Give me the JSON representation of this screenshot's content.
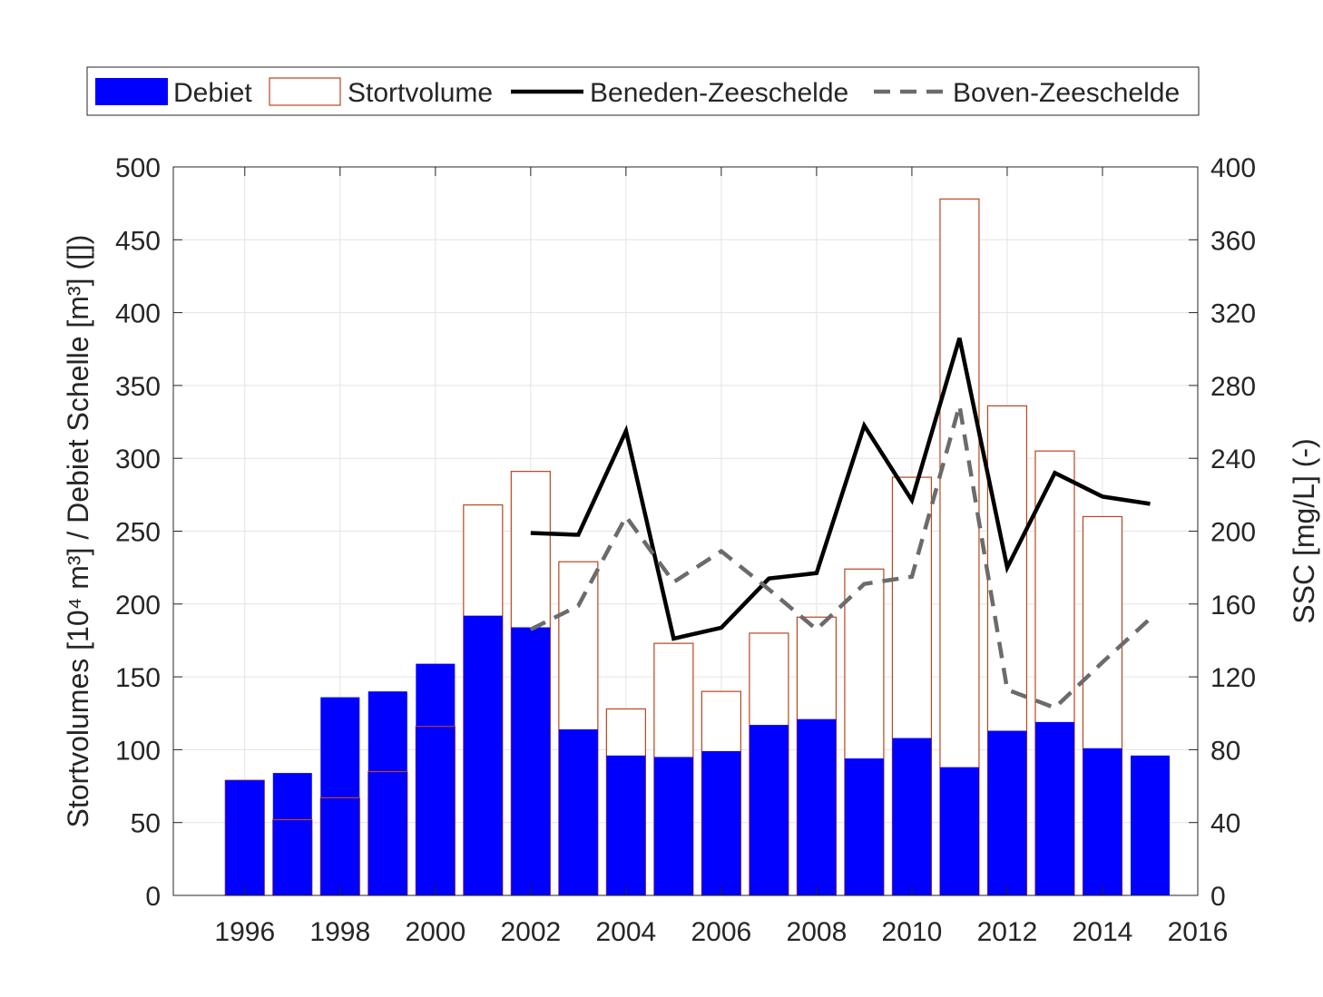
{
  "chart_data": {
    "type": "bar",
    "x": [
      1996,
      1997,
      1998,
      1999,
      2000,
      2001,
      2002,
      2003,
      2004,
      2005,
      2006,
      2007,
      2008,
      2009,
      2010,
      2011,
      2012,
      2013,
      2014,
      2015
    ],
    "xlim": [
      1994.5,
      2016
    ],
    "x_ticks": [
      1996,
      1998,
      2000,
      2002,
      2004,
      2006,
      2008,
      2010,
      2012,
      2014,
      2016
    ],
    "ylim_left": [
      0,
      500
    ],
    "y_ticks_left": [
      0,
      50,
      100,
      150,
      200,
      250,
      300,
      350,
      400,
      450,
      500
    ],
    "ylim_right": [
      0,
      400
    ],
    "y_ticks_right": [
      0,
      40,
      80,
      120,
      160,
      200,
      240,
      280,
      320,
      360,
      400
    ],
    "ylabel_left": "Stortvolumes [10⁴ m³] / Debiet Schelle [m³] ([])",
    "ylabel_right": "SSC [mg/L] (-)",
    "grid": true,
    "legend_position": "top",
    "series": [
      {
        "name": "Debiet",
        "kind": "bar-filled",
        "axis": "left",
        "color": "#0000ff",
        "values": [
          79,
          84,
          136,
          140,
          159,
          192,
          184,
          114,
          96,
          95,
          99,
          117,
          121,
          94,
          108,
          88,
          113,
          119,
          101,
          96
        ]
      },
      {
        "name": "Stortvolume",
        "kind": "bar-outline",
        "axis": "left",
        "color": "#b8461e",
        "values": [
          79,
          52,
          67,
          85,
          116,
          268,
          291,
          229,
          128,
          173,
          140,
          180,
          191,
          224,
          287,
          478,
          336,
          305,
          260,
          null
        ]
      },
      {
        "name": "Beneden-Zeeschelde",
        "kind": "line-solid",
        "axis": "right",
        "color": "#000000",
        "x": [
          2002,
          2003,
          2004,
          2005,
          2006,
          2007,
          2008,
          2009,
          2010,
          2011,
          2012,
          2013,
          2014,
          2015
        ],
        "values": [
          199,
          198,
          255,
          141,
          147,
          174,
          177,
          258,
          217,
          306,
          180,
          232,
          219,
          215
        ]
      },
      {
        "name": "Boven-Zeeschelde",
        "kind": "line-dashed",
        "axis": "right",
        "color": "#6b6b6b",
        "x": [
          2002,
          2003,
          2004,
          2005,
          2006,
          2007,
          2008,
          2009,
          2010,
          2011,
          2012,
          2013,
          2014,
          2015
        ],
        "values": [
          146,
          159,
          208,
          172,
          189,
          168,
          146,
          171,
          175,
          269,
          113,
          103,
          128,
          152
        ]
      }
    ]
  }
}
